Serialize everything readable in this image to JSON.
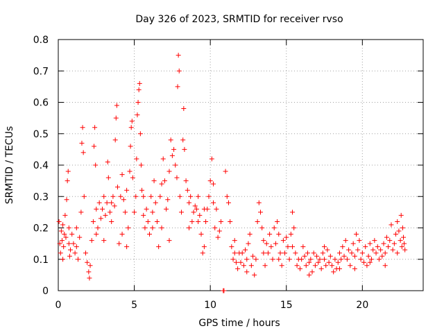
{
  "chart_data": {
    "type": "scatter",
    "title": "Day 326 of 2023, SRMTID for receiver rvso",
    "xlabel": "GPS time / hours",
    "ylabel": "SRMTID / TECUs",
    "xlim": [
      0,
      24
    ],
    "ylim": [
      0,
      0.8
    ],
    "x_ticks": [
      0,
      5,
      10,
      15,
      20
    ],
    "x_tick_labels": [
      "0",
      "5",
      "10",
      "15",
      "20"
    ],
    "y_ticks": [
      0,
      0.1,
      0.2,
      0.3,
      0.4,
      0.5,
      0.6,
      0.7,
      0.8
    ],
    "y_tick_labels": [
      "0",
      "0.1",
      "0.2",
      "0.3",
      "0.4",
      "0.5",
      "0.6",
      "0.7",
      "0.8"
    ],
    "grid": true,
    "marker": "+",
    "color": "#ff0000",
    "series": [
      {
        "name": "rvso",
        "points": [
          [
            0.05,
            0.22
          ],
          [
            0.1,
            0.15
          ],
          [
            0.15,
            0.12
          ],
          [
            0.2,
            0.19
          ],
          [
            0.25,
            0.16
          ],
          [
            0.3,
            0.21
          ],
          [
            0.35,
            0.14
          ],
          [
            0.4,
            0.18
          ],
          [
            0.45,
            0.24
          ],
          [
            0.5,
            0.17
          ],
          [
            0.55,
            0.29
          ],
          [
            0.6,
            0.35
          ],
          [
            0.65,
            0.38
          ],
          [
            0.7,
            0.15
          ],
          [
            0.75,
            0.11
          ],
          [
            0.8,
            0.13
          ],
          [
            0.9,
            0.18
          ],
          [
            1.0,
            0.15
          ],
          [
            1.1,
            0.12
          ],
          [
            1.2,
            0.2
          ],
          [
            1.3,
            0.1
          ],
          [
            1.4,
            0.17
          ],
          [
            1.5,
            0.25
          ],
          [
            1.55,
            0.47
          ],
          [
            1.6,
            0.52
          ],
          [
            1.65,
            0.44
          ],
          [
            1.7,
            0.3
          ],
          [
            1.8,
            0.12
          ],
          [
            1.9,
            0.09
          ],
          [
            2.0,
            0.06
          ],
          [
            2.05,
            0.04
          ],
          [
            2.1,
            0.08
          ],
          [
            2.2,
            0.16
          ],
          [
            2.3,
            0.22
          ],
          [
            2.35,
            0.46
          ],
          [
            2.4,
            0.52
          ],
          [
            2.45,
            0.4
          ],
          [
            2.5,
            0.26
          ],
          [
            2.6,
            0.2
          ],
          [
            2.7,
            0.28
          ],
          [
            2.8,
            0.23
          ],
          [
            2.9,
            0.26
          ],
          [
            3.0,
            0.3
          ],
          [
            3.1,
            0.24
          ],
          [
            3.2,
            0.28
          ],
          [
            3.25,
            0.41
          ],
          [
            3.3,
            0.36
          ],
          [
            3.4,
            0.25
          ],
          [
            3.5,
            0.22
          ],
          [
            3.6,
            0.3
          ],
          [
            3.7,
            0.27
          ],
          [
            3.75,
            0.48
          ],
          [
            3.8,
            0.55
          ],
          [
            3.85,
            0.59
          ],
          [
            3.9,
            0.33
          ],
          [
            4.0,
            0.15
          ],
          [
            4.1,
            0.3
          ],
          [
            4.2,
            0.37
          ],
          [
            4.3,
            0.29
          ],
          [
            4.4,
            0.25
          ],
          [
            4.5,
            0.32
          ],
          [
            4.6,
            0.2
          ],
          [
            4.7,
            0.38
          ],
          [
            4.75,
            0.46
          ],
          [
            4.8,
            0.52
          ],
          [
            4.85,
            0.54
          ],
          [
            4.9,
            0.36
          ],
          [
            5.0,
            0.25
          ],
          [
            5.1,
            0.3
          ],
          [
            5.15,
            0.42
          ],
          [
            5.2,
            0.56
          ],
          [
            5.25,
            0.6
          ],
          [
            5.3,
            0.64
          ],
          [
            5.35,
            0.66
          ],
          [
            5.4,
            0.5
          ],
          [
            5.45,
            0.4
          ],
          [
            5.5,
            0.32
          ],
          [
            5.6,
            0.24
          ],
          [
            5.7,
            0.2
          ],
          [
            5.8,
            0.26
          ],
          [
            5.9,
            0.22
          ],
          [
            6.0,
            0.18
          ],
          [
            6.1,
            0.3
          ],
          [
            6.2,
            0.25
          ],
          [
            6.3,
            0.35
          ],
          [
            6.4,
            0.28
          ],
          [
            6.5,
            0.22
          ],
          [
            6.6,
            0.14
          ],
          [
            6.7,
            0.3
          ],
          [
            6.8,
            0.2
          ],
          [
            6.9,
            0.42
          ],
          [
            7.0,
            0.35
          ],
          [
            7.1,
            0.26
          ],
          [
            7.2,
            0.29
          ],
          [
            7.3,
            0.38
          ],
          [
            7.4,
            0.48
          ],
          [
            7.5,
            0.43
          ],
          [
            7.6,
            0.45
          ],
          [
            7.7,
            0.4
          ],
          [
            7.8,
            0.36
          ],
          [
            7.85,
            0.65
          ],
          [
            7.9,
            0.75
          ],
          [
            7.95,
            0.7
          ],
          [
            8.0,
            0.3
          ],
          [
            8.1,
            0.25
          ],
          [
            8.2,
            0.48
          ],
          [
            8.25,
            0.58
          ],
          [
            8.3,
            0.45
          ],
          [
            8.4,
            0.35
          ],
          [
            8.5,
            0.32
          ],
          [
            8.6,
            0.28
          ],
          [
            8.7,
            0.3
          ],
          [
            8.8,
            0.22
          ],
          [
            8.9,
            0.25
          ],
          [
            9.0,
            0.27
          ],
          [
            9.1,
            0.26
          ],
          [
            9.2,
            0.3
          ],
          [
            9.3,
            0.24
          ],
          [
            9.4,
            0.18
          ],
          [
            9.5,
            0.12
          ],
          [
            9.6,
            0.14
          ],
          [
            9.7,
            0.22
          ],
          [
            9.8,
            0.26
          ],
          [
            9.9,
            0.3
          ],
          [
            10.0,
            0.35
          ],
          [
            10.1,
            0.42
          ],
          [
            10.2,
            0.28
          ],
          [
            10.3,
            0.2
          ],
          [
            10.4,
            0.26
          ],
          [
            10.5,
            0.17
          ],
          [
            10.6,
            0.19
          ],
          [
            10.7,
            0.22
          ],
          [
            10.85,
            0.0
          ],
          [
            10.9,
            0.0
          ],
          [
            11.0,
            0.38
          ],
          [
            11.1,
            0.3
          ],
          [
            11.2,
            0.28
          ],
          [
            11.3,
            0.22
          ],
          [
            11.4,
            0.14
          ],
          [
            11.5,
            0.1
          ],
          [
            11.6,
            0.12
          ],
          [
            11.7,
            0.09
          ],
          [
            11.8,
            0.07
          ],
          [
            11.9,
            0.12
          ],
          [
            12.0,
            0.09
          ],
          [
            12.1,
            0.12
          ],
          [
            12.2,
            0.08
          ],
          [
            12.3,
            0.13
          ],
          [
            12.4,
            0.1
          ],
          [
            12.5,
            0.15
          ],
          [
            12.6,
            0.18
          ],
          [
            12.7,
            0.08
          ],
          [
            12.8,
            0.11
          ],
          [
            12.9,
            0.05
          ],
          [
            13.0,
            0.1
          ],
          [
            13.1,
            0.22
          ],
          [
            13.2,
            0.28
          ],
          [
            13.3,
            0.25
          ],
          [
            13.4,
            0.2
          ],
          [
            13.5,
            0.12
          ],
          [
            13.6,
            0.08
          ],
          [
            13.7,
            0.15
          ],
          [
            13.8,
            0.12
          ],
          [
            13.9,
            0.18
          ],
          [
            14.0,
            0.14
          ],
          [
            14.1,
            0.1
          ],
          [
            14.2,
            0.2
          ],
          [
            14.3,
            0.15
          ],
          [
            14.4,
            0.22
          ],
          [
            14.5,
            0.18
          ],
          [
            14.6,
            0.12
          ],
          [
            14.7,
            0.08
          ],
          [
            14.8,
            0.16
          ],
          [
            14.9,
            0.12
          ],
          [
            15.0,
            0.17
          ],
          [
            15.1,
            0.14
          ],
          [
            15.2,
            0.1
          ],
          [
            15.3,
            0.18
          ],
          [
            15.4,
            0.25
          ],
          [
            15.5,
            0.2
          ],
          [
            15.6,
            0.12
          ],
          [
            15.7,
            0.08
          ],
          [
            15.8,
            0.1
          ],
          [
            15.9,
            0.07
          ],
          [
            16.0,
            0.1
          ],
          [
            16.1,
            0.14
          ],
          [
            16.2,
            0.11
          ],
          [
            16.3,
            0.08
          ],
          [
            16.4,
            0.12
          ],
          [
            16.5,
            0.09
          ],
          [
            16.6,
            0.1
          ],
          [
            16.7,
            0.06
          ],
          [
            16.8,
            0.12
          ],
          [
            16.9,
            0.08
          ],
          [
            17.0,
            0.11
          ],
          [
            17.1,
            0.09
          ],
          [
            17.2,
            0.1
          ],
          [
            17.3,
            0.07
          ],
          [
            17.4,
            0.12
          ],
          [
            17.5,
            0.1
          ],
          [
            17.6,
            0.08
          ],
          [
            17.7,
            0.13
          ],
          [
            17.8,
            0.09
          ],
          [
            17.9,
            0.11
          ],
          [
            18.0,
            0.08
          ],
          [
            18.1,
            0.06
          ],
          [
            18.2,
            0.1
          ],
          [
            18.3,
            0.07
          ],
          [
            18.4,
            0.09
          ],
          [
            18.5,
            0.12
          ],
          [
            18.6,
            0.1
          ],
          [
            18.7,
            0.14
          ],
          [
            18.8,
            0.11
          ],
          [
            18.9,
            0.16
          ],
          [
            19.0,
            0.1
          ],
          [
            19.1,
            0.13
          ],
          [
            19.2,
            0.08
          ],
          [
            19.3,
            0.12
          ],
          [
            19.4,
            0.15
          ],
          [
            19.5,
            0.11
          ],
          [
            19.6,
            0.18
          ],
          [
            19.7,
            0.13
          ],
          [
            19.8,
            0.16
          ],
          [
            19.9,
            0.1
          ],
          [
            20.0,
            0.12
          ],
          [
            20.1,
            0.09
          ],
          [
            20.2,
            0.14
          ],
          [
            20.3,
            0.08
          ],
          [
            20.4,
            0.11
          ],
          [
            20.5,
            0.15
          ],
          [
            20.6,
            0.1
          ],
          [
            20.7,
            0.13
          ],
          [
            20.8,
            0.16
          ],
          [
            20.9,
            0.12
          ],
          [
            21.0,
            0.14
          ],
          [
            21.1,
            0.1
          ],
          [
            21.2,
            0.13
          ],
          [
            21.3,
            0.11
          ],
          [
            21.4,
            0.15
          ],
          [
            21.5,
            0.12
          ],
          [
            21.6,
            0.17
          ],
          [
            21.7,
            0.14
          ],
          [
            21.8,
            0.16
          ],
          [
            21.9,
            0.21
          ],
          [
            22.0,
            0.13
          ],
          [
            22.1,
            0.15
          ],
          [
            22.2,
            0.18
          ],
          [
            22.3,
            0.12
          ],
          [
            22.4,
            0.19
          ],
          [
            22.5,
            0.16
          ],
          [
            22.55,
            0.24
          ],
          [
            22.6,
            0.14
          ],
          [
            22.65,
            0.2
          ],
          [
            22.7,
            0.17
          ],
          [
            22.75,
            0.15
          ],
          [
            22.8,
            0.13
          ],
          [
            0.3,
            0.1
          ],
          [
            0.7,
            0.2
          ],
          [
            1.2,
            0.14
          ],
          [
            2.5,
            0.18
          ],
          [
            3.0,
            0.16
          ],
          [
            3.5,
            0.28
          ],
          [
            4.2,
            0.18
          ],
          [
            4.5,
            0.14
          ],
          [
            5.6,
            0.3
          ],
          [
            6.2,
            0.2
          ],
          [
            6.8,
            0.34
          ],
          [
            7.3,
            0.16
          ],
          [
            8.6,
            0.2
          ],
          [
            9.2,
            0.22
          ],
          [
            9.6,
            0.26
          ],
          [
            10.2,
            0.34
          ],
          [
            11.6,
            0.16
          ],
          [
            12.4,
            0.06
          ],
          [
            13.5,
            0.16
          ],
          [
            14.5,
            0.1
          ],
          [
            15.4,
            0.14
          ],
          [
            16.5,
            0.05
          ],
          [
            17.5,
            0.14
          ],
          [
            18.5,
            0.07
          ],
          [
            19.5,
            0.07
          ],
          [
            20.5,
            0.09
          ],
          [
            21.5,
            0.08
          ],
          [
            22.3,
            0.22
          ]
        ]
      }
    ]
  }
}
